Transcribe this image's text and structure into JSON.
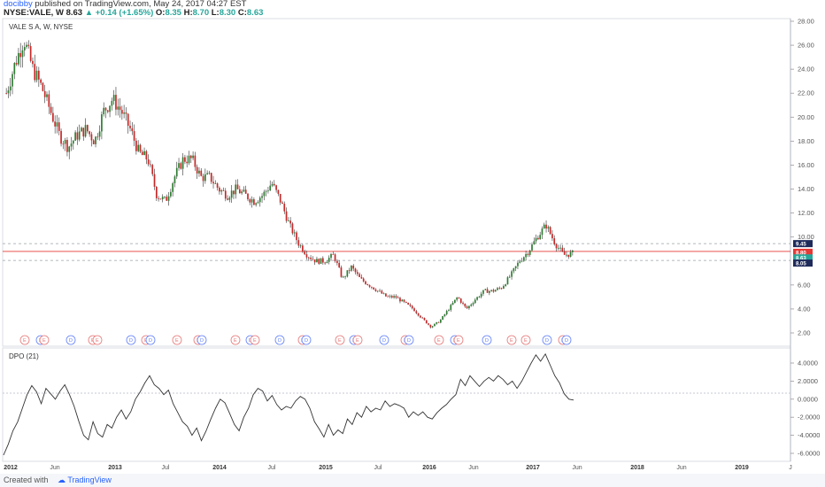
{
  "header": {
    "author": "docibby",
    "published_text": "published on TradingView.com, May 24, 2017 04:27 EST",
    "symbol": "NYSE:VALE, W",
    "last": "8.63",
    "change": "▲ +0.14 (+1.65%)",
    "o_label": "O:",
    "o": "8.35",
    "h_label": "H:",
    "h": "8.70",
    "l_label": "L:",
    "l": "8.30",
    "c_label": "C:",
    "c": "8.63"
  },
  "main_title": "VALE S A, W, NYSE",
  "dpo_title": "DPO (21)",
  "footer": {
    "created_with": "Created with",
    "brand": "TradingView"
  },
  "price_badges": [
    {
      "label": "9.45",
      "color": "#1e2a5a"
    },
    {
      "label": "8.80",
      "color": "#e53935"
    },
    {
      "label": "8.63",
      "color": "#26a69a"
    },
    {
      "label": "8.05",
      "color": "#1e2a5a"
    }
  ],
  "event_markers": [
    "E",
    "D",
    "E",
    "D",
    "E",
    "E",
    "D",
    "E",
    "D",
    "E",
    "E",
    "D",
    "E",
    "D",
    "E",
    "D",
    "E",
    "D",
    "E",
    "D",
    "E",
    "D",
    "E",
    "D",
    "E",
    "D",
    "E",
    "D",
    "E",
    "E",
    "D",
    "E",
    "D",
    "E",
    "D",
    "E",
    "D",
    "E"
  ],
  "chart_data": [
    {
      "type": "candlestick",
      "title": "VALE S A, W, NYSE",
      "price_axis_ticks": [
        "28.00",
        "26.00",
        "24.00",
        "22.00",
        "20.00",
        "18.00",
        "16.00",
        "14.00",
        "12.00",
        "10.00",
        "6.00",
        "4.00",
        "2.00"
      ],
      "ylim": [
        0.5,
        28
      ],
      "x_axis_labels": [
        "2012",
        "Jun",
        "2013",
        "Jul",
        "2014",
        "Jul",
        "2015",
        "Jul",
        "2016",
        "Jun",
        "2017",
        "Jun",
        "2018",
        "Jun",
        "2019",
        "J"
      ],
      "close_path": [
        [
          "2012-01",
          22.0
        ],
        [
          "2012-02",
          24.5
        ],
        [
          "2012-03",
          26.5
        ],
        [
          "2012-04",
          24.0
        ],
        [
          "2012-05",
          22.5
        ],
        [
          "2012-06",
          20.5
        ],
        [
          "2012-07",
          18.5
        ],
        [
          "2012-08",
          17.5
        ],
        [
          "2012-09",
          18.5
        ],
        [
          "2012-10",
          19.0
        ],
        [
          "2012-11",
          18.0
        ],
        [
          "2012-12",
          20.5
        ],
        [
          "2013-01",
          21.5
        ],
        [
          "2013-02",
          20.5
        ],
        [
          "2013-03",
          19.0
        ],
        [
          "2013-04",
          17.0
        ],
        [
          "2013-05",
          16.5
        ],
        [
          "2013-06",
          13.5
        ],
        [
          "2013-07",
          13.0
        ],
        [
          "2013-08",
          15.0
        ],
        [
          "2013-09",
          16.5
        ],
        [
          "2013-10",
          16.5
        ],
        [
          "2013-11",
          15.0
        ],
        [
          "2013-12",
          15.0
        ],
        [
          "2014-01",
          14.0
        ],
        [
          "2014-02",
          13.5
        ],
        [
          "2014-03",
          14.0
        ],
        [
          "2014-04",
          13.5
        ],
        [
          "2014-05",
          13.0
        ],
        [
          "2014-06",
          13.5
        ],
        [
          "2014-07",
          14.5
        ],
        [
          "2014-08",
          13.0
        ],
        [
          "2014-09",
          11.0
        ],
        [
          "2014-10",
          9.5
        ],
        [
          "2014-11",
          8.5
        ],
        [
          "2014-12",
          8.0
        ],
        [
          "2015-01",
          8.0
        ],
        [
          "2015-02",
          8.5
        ],
        [
          "2015-03",
          6.5
        ],
        [
          "2015-04",
          7.5
        ],
        [
          "2015-05",
          6.5
        ],
        [
          "2015-06",
          6.0
        ],
        [
          "2015-07",
          5.5
        ],
        [
          "2015-08",
          5.0
        ],
        [
          "2015-09",
          5.0
        ],
        [
          "2015-10",
          4.5
        ],
        [
          "2015-11",
          4.0
        ],
        [
          "2015-12",
          3.2
        ],
        [
          "2016-01",
          2.5
        ],
        [
          "2016-02",
          3.0
        ],
        [
          "2016-03",
          4.0
        ],
        [
          "2016-04",
          5.0
        ],
        [
          "2016-05",
          4.0
        ],
        [
          "2016-06",
          4.8
        ],
        [
          "2016-07",
          5.5
        ],
        [
          "2016-08",
          5.5
        ],
        [
          "2016-09",
          5.8
        ],
        [
          "2016-10",
          6.8
        ],
        [
          "2016-11",
          8.0
        ],
        [
          "2016-12",
          8.8
        ],
        [
          "2017-01",
          10.0
        ],
        [
          "2017-02",
          11.0
        ],
        [
          "2017-03",
          9.5
        ],
        [
          "2017-04",
          8.5
        ],
        [
          "2017-05",
          8.63
        ]
      ],
      "horizontal_levels": [
        {
          "value": 9.45,
          "style": "dashed"
        },
        {
          "value": 8.8,
          "style": "solid-red"
        },
        {
          "value": 8.63,
          "style": "label-only"
        },
        {
          "value": 8.05,
          "style": "dashed"
        }
      ]
    },
    {
      "type": "line",
      "title": "DPO (21)",
      "y_ticks": [
        "4.0000",
        "2.0000",
        "0.0000",
        "-2.0000",
        "-4.0000",
        "-6.0000"
      ],
      "ylim": [
        -7,
        5
      ],
      "values": [
        [
          0,
          -6.2
        ],
        [
          1,
          -5.0
        ],
        [
          2,
          -3.5
        ],
        [
          3,
          -2.5
        ],
        [
          4,
          -1.0
        ],
        [
          5,
          0.5
        ],
        [
          6,
          1.5
        ],
        [
          7,
          0.8
        ],
        [
          8,
          -0.5
        ],
        [
          9,
          1.2
        ],
        [
          10,
          0.6
        ],
        [
          11,
          0.0
        ],
        [
          12,
          0.9
        ],
        [
          13,
          1.6
        ],
        [
          14,
          0.5
        ],
        [
          15,
          -0.8
        ],
        [
          16,
          -2.5
        ],
        [
          17,
          -4.0
        ],
        [
          18,
          -4.5
        ],
        [
          19,
          -2.5
        ],
        [
          20,
          -3.8
        ],
        [
          21,
          -4.2
        ],
        [
          22,
          -2.8
        ],
        [
          23,
          -3.2
        ],
        [
          24,
          -2.0
        ],
        [
          25,
          -1.2
        ],
        [
          26,
          -2.2
        ],
        [
          27,
          -1.4
        ],
        [
          28,
          0.0
        ],
        [
          29,
          0.8
        ],
        [
          30,
          1.8
        ],
        [
          31,
          2.6
        ],
        [
          32,
          1.6
        ],
        [
          33,
          1.2
        ],
        [
          34,
          0.5
        ],
        [
          35,
          1.0
        ],
        [
          36,
          -0.5
        ],
        [
          37,
          -1.5
        ],
        [
          38,
          -2.5
        ],
        [
          39,
          -3.0
        ],
        [
          40,
          -4.0
        ],
        [
          41,
          -3.2
        ],
        [
          42,
          -4.6
        ],
        [
          43,
          -3.5
        ],
        [
          44,
          -2.2
        ],
        [
          45,
          -1.0
        ],
        [
          46,
          0.0
        ],
        [
          47,
          -0.4
        ],
        [
          48,
          -1.6
        ],
        [
          49,
          -2.8
        ],
        [
          50,
          -3.5
        ],
        [
          51,
          -2.0
        ],
        [
          52,
          -1.0
        ],
        [
          53,
          0.5
        ],
        [
          54,
          1.2
        ],
        [
          55,
          0.9
        ],
        [
          56,
          -0.2
        ],
        [
          57,
          0.4
        ],
        [
          58,
          -0.6
        ],
        [
          59,
          -1.2
        ],
        [
          60,
          -0.8
        ],
        [
          61,
          -1.0
        ],
        [
          62,
          -0.2
        ],
        [
          63,
          0.3
        ],
        [
          64,
          0.0
        ],
        [
          65,
          -1.0
        ],
        [
          66,
          -2.5
        ],
        [
          67,
          -3.3
        ],
        [
          68,
          -4.2
        ],
        [
          69,
          -2.8
        ],
        [
          70,
          -4.0
        ],
        [
          71,
          -3.4
        ],
        [
          72,
          -3.8
        ],
        [
          73,
          -2.2
        ],
        [
          74,
          -2.8
        ],
        [
          75,
          -1.5
        ],
        [
          76,
          -2.0
        ],
        [
          77,
          -0.8
        ],
        [
          78,
          -1.4
        ],
        [
          79,
          -1.0
        ],
        [
          80,
          -1.2
        ],
        [
          81,
          -0.2
        ],
        [
          82,
          -0.8
        ],
        [
          83,
          -0.5
        ],
        [
          84,
          -0.7
        ],
        [
          85,
          -1.0
        ],
        [
          86,
          -2.0
        ],
        [
          87,
          -1.4
        ],
        [
          88,
          -1.8
        ],
        [
          89,
          -1.4
        ],
        [
          90,
          -2.0
        ],
        [
          91,
          -2.2
        ],
        [
          92,
          -1.5
        ],
        [
          93,
          -1.0
        ],
        [
          94,
          -0.6
        ],
        [
          95,
          0.0
        ],
        [
          96,
          0.5
        ],
        [
          97,
          2.2
        ],
        [
          98,
          1.5
        ],
        [
          99,
          2.6
        ],
        [
          100,
          2.0
        ],
        [
          101,
          1.4
        ],
        [
          102,
          2.0
        ],
        [
          103,
          2.4
        ],
        [
          104,
          2.0
        ],
        [
          105,
          2.6
        ],
        [
          106,
          2.2
        ],
        [
          107,
          1.6
        ],
        [
          108,
          2.0
        ],
        [
          109,
          1.2
        ],
        [
          110,
          2.0
        ],
        [
          111,
          3.0
        ],
        [
          112,
          4.0
        ],
        [
          113,
          4.9
        ],
        [
          114,
          4.2
        ],
        [
          115,
          5.0
        ],
        [
          116,
          3.8
        ],
        [
          117,
          2.6
        ],
        [
          118,
          1.8
        ],
        [
          119,
          0.6
        ],
        [
          120,
          0.0
        ],
        [
          121,
          -0.1
        ]
      ]
    }
  ]
}
